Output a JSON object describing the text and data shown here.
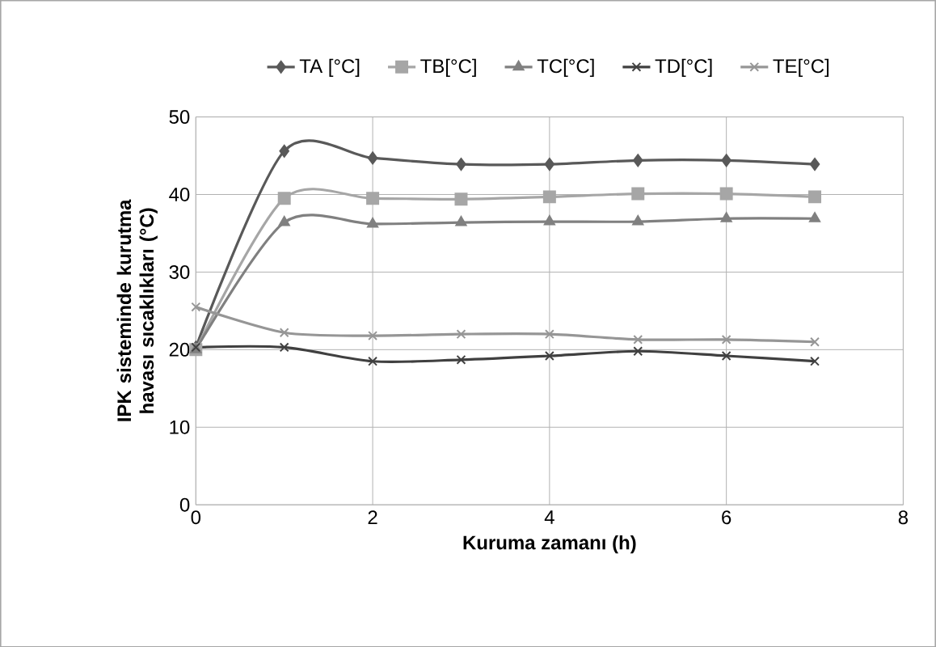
{
  "chart_data": {
    "type": "line",
    "xlabel": "Kuruma zamanı (h)",
    "ylabel": "IPK sisteminde kurutma havası sıcaklıkları (°C)",
    "xlim": [
      0,
      8
    ],
    "xticks": [
      0,
      2,
      4,
      6,
      8
    ],
    "ylim": [
      0,
      50
    ],
    "yticks": [
      0,
      10,
      20,
      30,
      40,
      50
    ],
    "grid": true,
    "legend": "top",
    "x": [
      0,
      1,
      2,
      3,
      4,
      5,
      6,
      7
    ],
    "series": [
      {
        "name": "TA [°C]",
        "color": "#595959",
        "marker": "diamond",
        "values": [
          20.3,
          45.6,
          44.7,
          43.9,
          43.9,
          44.4,
          44.4,
          43.9
        ]
      },
      {
        "name": "TB[°C]",
        "color": "#a6a6a6",
        "marker": "square",
        "values": [
          20.0,
          39.5,
          39.5,
          39.4,
          39.7,
          40.1,
          40.1,
          39.7
        ]
      },
      {
        "name": "TC[°C]",
        "color": "#808080",
        "marker": "triangle",
        "values": [
          20.0,
          36.4,
          36.2,
          36.4,
          36.5,
          36.5,
          36.9,
          36.9
        ]
      },
      {
        "name": "TD[°C]",
        "color": "#404040",
        "marker": "cross",
        "values": [
          20.3,
          20.3,
          18.5,
          18.7,
          19.2,
          19.8,
          19.2,
          18.5
        ]
      },
      {
        "name": "TE[°C]",
        "color": "#969696",
        "marker": "cross",
        "values": [
          25.5,
          22.2,
          21.8,
          22.0,
          22.0,
          21.3,
          21.3,
          21.0
        ]
      }
    ]
  }
}
